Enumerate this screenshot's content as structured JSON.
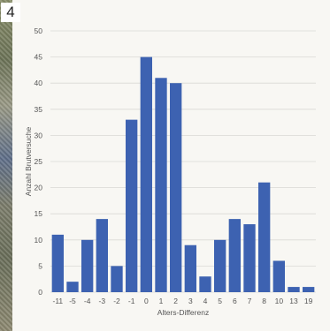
{
  "panel_number": "4",
  "chart_data": {
    "type": "bar",
    "categories": [
      "-11",
      "-5",
      "-4",
      "-3",
      "-2",
      "-1",
      "0",
      "1",
      "2",
      "3",
      "4",
      "5",
      "6",
      "7",
      "8",
      "10",
      "13",
      "19"
    ],
    "values": [
      11,
      2,
      10,
      14,
      5,
      33,
      45,
      41,
      40,
      9,
      3,
      10,
      14,
      13,
      21,
      6,
      1,
      1
    ],
    "xlabel": "Alters-Differenz",
    "ylabel": "Anzahl Brutversuche",
    "ylim": [
      0,
      50
    ],
    "yticks": [
      0,
      5,
      10,
      15,
      20,
      25,
      30,
      35,
      40,
      45,
      50
    ],
    "grid": true,
    "bar_color": "#3d62b1"
  }
}
